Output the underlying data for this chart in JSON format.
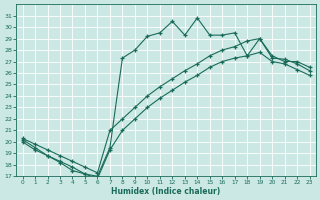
{
  "background_color": "#cce8e4",
  "grid_color": "#b8d8d4",
  "line_color": "#1a6b5a",
  "xlabel": "Humidex (Indice chaleur)",
  "xlim": [
    -0.5,
    23.5
  ],
  "ylim": [
    17,
    32
  ],
  "x_ticks": [
    0,
    1,
    2,
    3,
    4,
    5,
    6,
    7,
    8,
    9,
    10,
    11,
    12,
    13,
    14,
    15,
    16,
    17,
    18,
    19,
    20,
    21,
    22,
    23
  ],
  "y_ticks": [
    17,
    18,
    19,
    20,
    21,
    22,
    23,
    24,
    25,
    26,
    27,
    28,
    29,
    30,
    31
  ],
  "line_peak_x": [
    0,
    1,
    2,
    3,
    4,
    5,
    6,
    7,
    8,
    9,
    10,
    11,
    12,
    13,
    14,
    15,
    16,
    17,
    18,
    19,
    20,
    21,
    22,
    23
  ],
  "line_peak_y": [
    20.2,
    19.5,
    18.8,
    18.3,
    17.8,
    17.2,
    17.0,
    19.5,
    27.3,
    28.0,
    29.2,
    29.5,
    30.5,
    29.3,
    30.8,
    29.3,
    29.3,
    29.5,
    27.5,
    29.0,
    27.5,
    27.0,
    27.0,
    26.5
  ],
  "line_mid_x": [
    0,
    1,
    2,
    3,
    4,
    5,
    6,
    7,
    8,
    9,
    10,
    11,
    12,
    13,
    14,
    15,
    16,
    17,
    18,
    19,
    20,
    21,
    22,
    23
  ],
  "line_mid_y": [
    20.3,
    19.8,
    19.3,
    18.8,
    18.3,
    17.8,
    17.3,
    21.0,
    22.0,
    23.0,
    24.0,
    24.8,
    25.5,
    26.2,
    26.8,
    27.5,
    28.0,
    28.3,
    28.8,
    29.0,
    27.3,
    27.2,
    26.8,
    26.2
  ],
  "line_low_x": [
    0,
    1,
    2,
    3,
    4,
    5,
    6,
    7,
    8,
    9,
    10,
    11,
    12,
    13,
    14,
    15,
    16,
    17,
    18,
    19,
    20,
    21,
    22,
    23
  ],
  "line_low_y": [
    20.0,
    19.3,
    18.8,
    18.2,
    17.5,
    17.2,
    16.8,
    19.3,
    21.0,
    22.0,
    23.0,
    23.8,
    24.5,
    25.2,
    25.8,
    26.5,
    27.0,
    27.3,
    27.5,
    27.8,
    27.0,
    26.8,
    26.3,
    25.8
  ]
}
